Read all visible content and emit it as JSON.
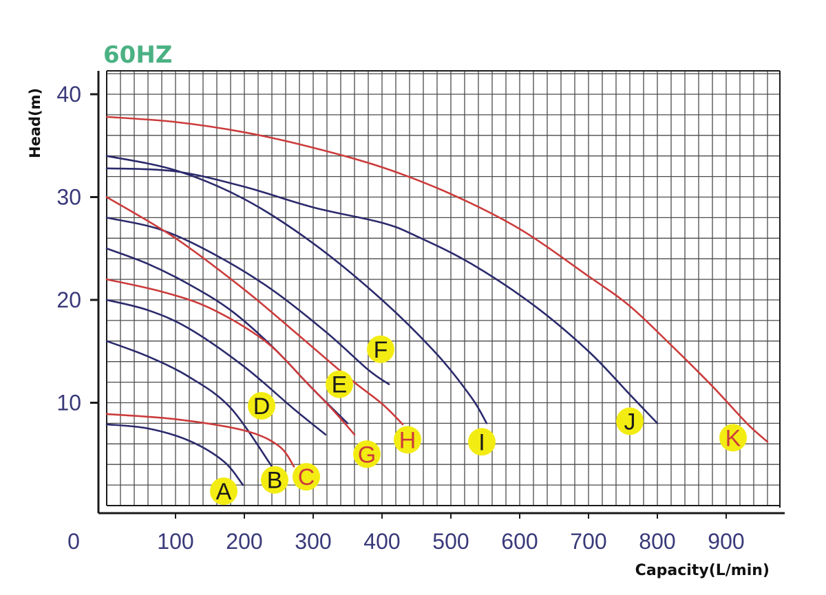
{
  "chart_data": {
    "type": "line",
    "title": "60HZ",
    "xlabel": "Capacity(L/min)",
    "ylabel": "Head(m)",
    "xlim": [
      0,
      980
    ],
    "ylim": [
      0,
      40
    ],
    "xticks": [
      "0",
      "100",
      "200",
      "300",
      "400",
      "500",
      "600",
      "700",
      "800",
      "900"
    ],
    "yticks": [
      "10",
      "20",
      "30",
      "40"
    ],
    "grid": true,
    "colors": {
      "red": "#cc3b3b",
      "blue": "#2b2a6c",
      "marker": "#f3ec12",
      "title": "#4bb183",
      "axis_text": "#39397a"
    },
    "series": [
      {
        "name": "A",
        "color": "blue",
        "label_pos": [
          170,
          1.4
        ],
        "label_color": "black",
        "points": [
          [
            0,
            7.9
          ],
          [
            60,
            7.5
          ],
          [
            120,
            6.3
          ],
          [
            170,
            4.3
          ],
          [
            198,
            2.0
          ]
        ]
      },
      {
        "name": "B",
        "color": "blue",
        "label_pos": [
          244,
          2.5
        ],
        "label_color": "black",
        "points": [
          [
            0,
            16.0
          ],
          [
            60,
            14.5
          ],
          [
            120,
            12.5
          ],
          [
            180,
            9.5
          ],
          [
            240,
            3.8
          ]
        ]
      },
      {
        "name": "C",
        "color": "red",
        "label_pos": [
          290,
          2.8
        ],
        "label_color": "red",
        "points": [
          [
            0,
            8.9
          ],
          [
            100,
            8.4
          ],
          [
            200,
            7.3
          ],
          [
            250,
            5.8
          ],
          [
            272,
            3.8
          ]
        ]
      },
      {
        "name": "D",
        "color": "blue",
        "label_pos": [
          225,
          9.7
        ],
        "label_color": "black",
        "points": [
          [
            0,
            20.0
          ],
          [
            60,
            19.0
          ],
          [
            120,
            17.2
          ],
          [
            200,
            13.5
          ],
          [
            270,
            9.5
          ],
          [
            318,
            6.9
          ]
        ]
      },
      {
        "name": "E",
        "color": "blue",
        "label_pos": [
          338,
          11.8
        ],
        "label_color": "black",
        "points": [
          [
            0,
            25.0
          ],
          [
            60,
            23.5
          ],
          [
            120,
            21.5
          ],
          [
            180,
            19.0
          ],
          [
            240,
            15.5
          ],
          [
            300,
            11.3
          ],
          [
            350,
            8.0
          ]
        ]
      },
      {
        "name": "F",
        "color": "blue",
        "label_pos": [
          398,
          15.2
        ],
        "label_color": "black",
        "points": [
          [
            0,
            28.0
          ],
          [
            80,
            26.8
          ],
          [
            160,
            24.3
          ],
          [
            240,
            21.0
          ],
          [
            320,
            16.8
          ],
          [
            380,
            13.2
          ],
          [
            410,
            11.8
          ]
        ]
      },
      {
        "name": "G",
        "color": "red",
        "label_pos": [
          378,
          5.0
        ],
        "label_color": "red",
        "points": [
          [
            0,
            22.0
          ],
          [
            80,
            20.8
          ],
          [
            150,
            19.2
          ],
          [
            230,
            16.0
          ],
          [
            290,
            12.0
          ],
          [
            330,
            9.2
          ],
          [
            360,
            6.9
          ]
        ]
      },
      {
        "name": "H",
        "color": "red",
        "label_pos": [
          437,
          6.4
        ],
        "label_color": "red",
        "points": [
          [
            0,
            30.0
          ],
          [
            100,
            26.0
          ],
          [
            200,
            21.0
          ],
          [
            280,
            16.5
          ],
          [
            350,
            12.5
          ],
          [
            400,
            9.9
          ],
          [
            430,
            7.9
          ]
        ]
      },
      {
        "name": "I",
        "color": "blue",
        "label_pos": [
          545,
          6.2
        ],
        "label_color": "black",
        "points": [
          [
            0,
            34.0
          ],
          [
            100,
            32.6
          ],
          [
            200,
            29.8
          ],
          [
            300,
            25.5
          ],
          [
            400,
            20.0
          ],
          [
            480,
            14.7
          ],
          [
            530,
            10.5
          ],
          [
            552,
            8.0
          ]
        ]
      },
      {
        "name": "J",
        "color": "blue",
        "label_pos": [
          760,
          8.2
        ],
        "label_color": "black",
        "points": [
          [
            0,
            32.8
          ],
          [
            100,
            32.5
          ],
          [
            200,
            31.0
          ],
          [
            300,
            29.0
          ],
          [
            400,
            27.5
          ],
          [
            450,
            26.2
          ],
          [
            530,
            23.5
          ],
          [
            620,
            19.5
          ],
          [
            700,
            15.0
          ],
          [
            760,
            10.8
          ],
          [
            800,
            8.0
          ]
        ]
      },
      {
        "name": "K",
        "color": "red",
        "label_pos": [
          910,
          6.6
        ],
        "label_color": "red",
        "points": [
          [
            0,
            37.8
          ],
          [
            100,
            37.3
          ],
          [
            200,
            36.3
          ],
          [
            300,
            34.8
          ],
          [
            400,
            32.9
          ],
          [
            500,
            30.3
          ],
          [
            600,
            26.9
          ],
          [
            700,
            22.3
          ],
          [
            760,
            19.4
          ],
          [
            820,
            15.6
          ],
          [
            880,
            11.6
          ],
          [
            930,
            8.0
          ],
          [
            960,
            6.2
          ]
        ]
      }
    ]
  }
}
